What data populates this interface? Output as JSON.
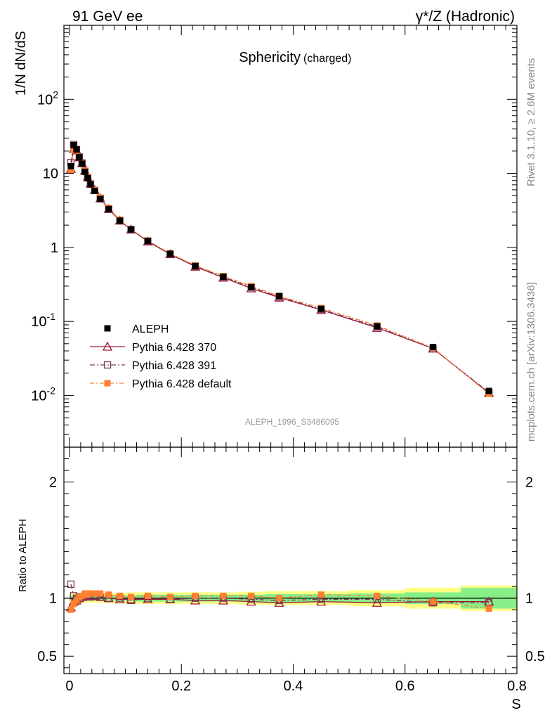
{
  "header": {
    "left": "91 GeV ee",
    "right_main": "γ*/Z (Hadronic)"
  },
  "side_texts": {
    "rivet": "Rivet 3.1.10, ≥ 2.6M events",
    "mcplots": "mcplots.cern.ch [arXiv:1306.3436]"
  },
  "chart_data": [
    {
      "type": "scatter",
      "panel": "main",
      "title": "Sphericity",
      "subtitle": "(charged)",
      "ylabel": "1/N dN/dS",
      "yscale": "log",
      "ylim": [
        0.002,
        1000
      ],
      "xlim": [
        -0.01,
        0.8
      ],
      "watermark": "ALEPH_1996_S3486095",
      "ytick_labels": [
        "10^-2",
        "10^-1",
        "1",
        "10",
        "10^2"
      ],
      "legend_position": "lower-left",
      "legend": [
        {
          "name": "ALEPH",
          "color": "#000000",
          "marker": "filled-square"
        },
        {
          "name": "Pythia 6.428 370",
          "color": "#a01a33",
          "marker": "open-triangle"
        },
        {
          "name": "Pythia 6.428 391",
          "color": "#7a3a5a",
          "marker": "open-square"
        },
        {
          "name": "Pythia 6.428 default",
          "color": "#ff8030",
          "marker": "filled-square"
        }
      ],
      "x": [
        0.0025,
        0.0075,
        0.0125,
        0.0175,
        0.0225,
        0.0275,
        0.0325,
        0.0375,
        0.045,
        0.055,
        0.07,
        0.09,
        0.11,
        0.14,
        0.18,
        0.225,
        0.275,
        0.325,
        0.375,
        0.45,
        0.55,
        0.65,
        0.75
      ],
      "series": [
        {
          "name": "ALEPH",
          "values": [
            12.5,
            24.0,
            21.0,
            16.5,
            13.5,
            10.5,
            8.6,
            7.1,
            5.8,
            4.5,
            3.3,
            2.3,
            1.75,
            1.22,
            0.82,
            0.56,
            0.4,
            0.29,
            0.22,
            0.148,
            0.086,
            0.045,
            0.0115
          ]
        },
        {
          "name": "Pythia 6.428 370",
          "values": [
            11.5,
            21.5,
            20.5,
            16.5,
            13.8,
            10.9,
            8.9,
            7.3,
            6.0,
            4.6,
            3.3,
            2.3,
            1.74,
            1.2,
            0.81,
            0.55,
            0.39,
            0.28,
            0.21,
            0.143,
            0.082,
            0.043,
            0.0108
          ]
        },
        {
          "name": "Pythia 6.428 391",
          "values": [
            14.0,
            24.5,
            21.0,
            16.7,
            13.8,
            10.7,
            8.8,
            7.2,
            5.9,
            4.6,
            3.3,
            2.32,
            1.74,
            1.22,
            0.81,
            0.56,
            0.4,
            0.29,
            0.215,
            0.146,
            0.085,
            0.043,
            0.011
          ]
        },
        {
          "name": "Pythia 6.428 default",
          "values": [
            11.2,
            21.0,
            20.5,
            16.7,
            13.8,
            10.9,
            8.9,
            7.3,
            6.0,
            4.7,
            3.4,
            2.35,
            1.76,
            1.24,
            0.83,
            0.57,
            0.41,
            0.3,
            0.22,
            0.152,
            0.088,
            0.044,
            0.0105
          ]
        }
      ]
    },
    {
      "type": "line",
      "panel": "ratio",
      "ylabel": "Ratio to ALEPH",
      "xlabel": "S",
      "ylim": [
        0.35,
        2.3
      ],
      "xlim": [
        -0.01,
        0.8
      ],
      "ytick_labels": [
        "0.5",
        "1",
        "2"
      ],
      "xtick_labels": [
        "0",
        "0.2",
        "0.4",
        "0.6",
        "0.8"
      ],
      "x": [
        0.0025,
        0.0075,
        0.0125,
        0.0175,
        0.0225,
        0.0275,
        0.0325,
        0.0375,
        0.045,
        0.055,
        0.07,
        0.09,
        0.11,
        0.14,
        0.18,
        0.225,
        0.275,
        0.325,
        0.375,
        0.45,
        0.55,
        0.65,
        0.75
      ],
      "bin_edges": [
        0.0,
        0.005,
        0.01,
        0.015,
        0.02,
        0.025,
        0.03,
        0.035,
        0.04,
        0.05,
        0.06,
        0.08,
        0.1,
        0.12,
        0.16,
        0.2,
        0.25,
        0.3,
        0.35,
        0.4,
        0.5,
        0.6,
        0.7,
        0.8
      ],
      "band_inner": [
        0.02,
        0.02,
        0.02,
        0.02,
        0.02,
        0.02,
        0.02,
        0.02,
        0.02,
        0.02,
        0.02,
        0.025,
        0.025,
        0.03,
        0.03,
        0.03,
        0.03,
        0.03,
        0.035,
        0.035,
        0.04,
        0.05,
        0.09
      ],
      "band_outer": [
        0.04,
        0.04,
        0.04,
        0.04,
        0.04,
        0.04,
        0.04,
        0.04,
        0.04,
        0.04,
        0.045,
        0.045,
        0.05,
        0.05,
        0.05,
        0.05,
        0.05,
        0.055,
        0.06,
        0.06,
        0.07,
        0.09,
        0.11
      ],
      "series": [
        {
          "name": "Pythia 6.428 370",
          "values": [
            0.92,
            0.97,
            0.98,
            1.0,
            1.01,
            1.02,
            1.02,
            1.02,
            1.02,
            1.01,
            1.0,
            0.99,
            0.99,
            0.99,
            0.99,
            0.98,
            0.98,
            0.97,
            0.96,
            0.97,
            0.96,
            0.97,
            0.97
          ]
        },
        {
          "name": "Pythia 6.428 391",
          "values": [
            1.12,
            1.02,
            1.0,
            1.01,
            1.01,
            1.01,
            1.02,
            1.01,
            1.02,
            1.01,
            1.0,
            1.0,
            0.98,
            1.0,
            0.99,
            1.0,
            1.0,
            0.99,
            0.98,
            0.99,
            0.99,
            0.96,
            0.96
          ]
        },
        {
          "name": "Pythia 6.428 default",
          "values": [
            0.9,
            0.95,
            0.98,
            1.01,
            1.02,
            1.04,
            1.03,
            1.04,
            1.04,
            1.04,
            1.03,
            1.02,
            1.01,
            1.02,
            1.01,
            1.02,
            1.02,
            1.02,
            1.0,
            1.03,
            1.02,
            0.97,
            0.91
          ]
        }
      ]
    }
  ]
}
